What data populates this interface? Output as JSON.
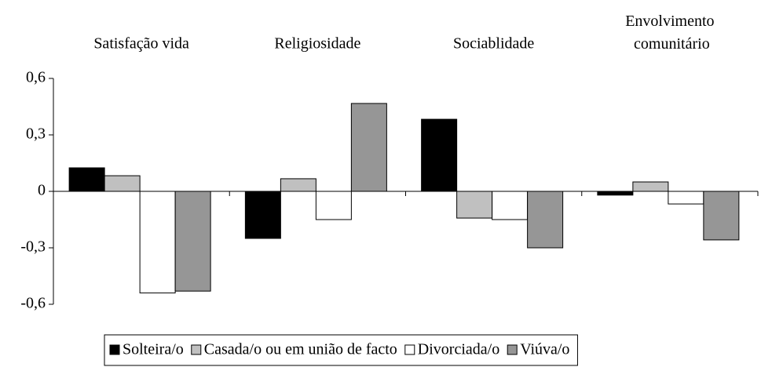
{
  "chart_data": {
    "type": "bar",
    "categories": [
      "Satisfação vida",
      "Religiosidade",
      "Sociablidade",
      "Envolvimento comunitário"
    ],
    "series": [
      {
        "name": "Solteira/o",
        "color": "#000000",
        "values": [
          0.125,
          -0.25,
          0.383,
          -0.02
        ]
      },
      {
        "name": "Casada/o ou em união de facto",
        "color": "#c0c0c0",
        "values": [
          0.083,
          0.067,
          -0.142,
          0.05
        ]
      },
      {
        "name": "Divorciada/o",
        "color": "#ffffff",
        "values": [
          -0.54,
          -0.15,
          -0.15,
          -0.067
        ]
      },
      {
        "name": "Viúva/o",
        "color": "#969696",
        "values": [
          -0.53,
          0.467,
          -0.3,
          -0.258
        ]
      }
    ],
    "ylim": [
      -0.6,
      0.6
    ],
    "yticks": [
      {
        "value": -0.6,
        "label": "-0,6"
      },
      {
        "value": -0.3,
        "label": "-0,3"
      },
      0,
      {
        "value": 0.3,
        "label": "0,3"
      },
      {
        "value": 0.6,
        "label": "0,6"
      }
    ],
    "legend": "bottom"
  }
}
